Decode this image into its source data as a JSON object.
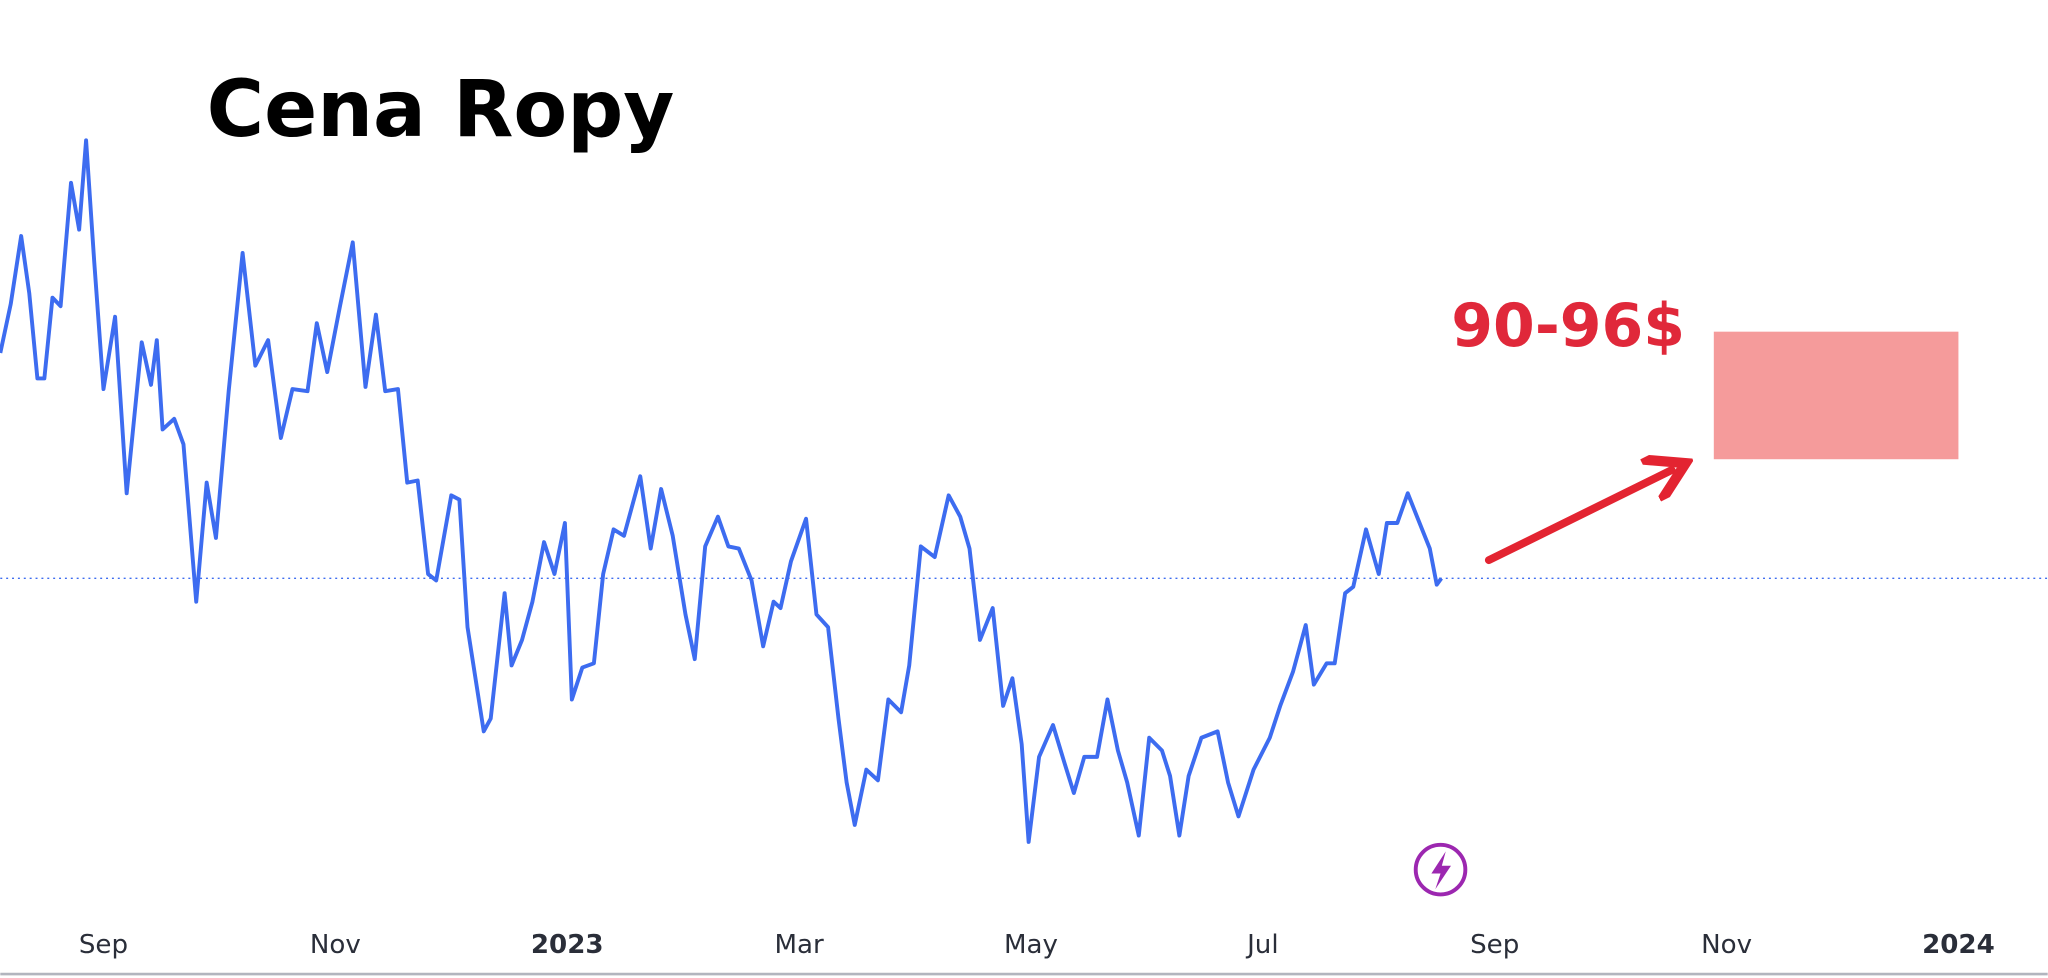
{
  "chart_data": {
    "type": "line",
    "title": "Cena Ropy",
    "x": [
      -0.89,
      -0.8,
      -0.71,
      -0.64,
      -0.57,
      -0.51,
      -0.44,
      -0.37,
      -0.28,
      -0.21,
      -0.15,
      -0.08,
      0.0,
      0.1,
      0.2,
      0.33,
      0.41,
      0.46,
      0.51,
      0.61,
      0.69,
      0.8,
      0.89,
      0.97,
      1.08,
      1.2,
      1.31,
      1.42,
      1.53,
      1.63,
      1.76,
      1.84,
      1.93,
      2.04,
      2.15,
      2.26,
      2.35,
      2.43,
      2.54,
      2.62,
      2.71,
      2.8,
      2.87,
      3.0,
      3.07,
      3.14,
      3.28,
      3.34,
      3.46,
      3.52,
      3.61,
      3.7,
      3.8,
      3.89,
      3.98,
      4.04,
      4.13,
      4.23,
      4.31,
      4.4,
      4.49,
      4.63,
      4.72,
      4.81,
      4.91,
      5.02,
      5.1,
      5.19,
      5.3,
      5.39,
      5.48,
      5.59,
      5.69,
      5.78,
      5.84,
      5.93,
      6.06,
      6.15,
      6.25,
      6.34,
      6.41,
      6.48,
      6.58,
      6.68,
      6.77,
      6.88,
      6.95,
      7.05,
      7.17,
      7.29,
      7.39,
      7.47,
      7.56,
      7.67,
      7.76,
      7.84,
      7.92,
      7.98,
      8.07,
      8.19,
      8.29,
      8.37,
      8.46,
      8.57,
      8.66,
      8.75,
      8.83,
      8.93,
      9.02,
      9.13,
      9.2,
      9.28,
      9.36,
      9.47,
      9.61,
      9.7,
      9.79,
      9.92,
      10.06,
      10.15,
      10.26,
      10.37,
      10.44,
      10.55,
      10.62,
      10.71,
      10.78,
      10.89,
      11.0,
      11.07,
      11.16,
      11.25,
      11.33,
      11.44,
      11.5,
      11.54
    ],
    "series": [
      {
        "color": "#3d6cf0",
        "values": [
          95.0,
          97.3,
          100.5,
          97.8,
          93.8,
          93.8,
          97.6,
          97.2,
          103.0,
          100.8,
          105.0,
          99.3,
          93.3,
          96.7,
          88.4,
          95.5,
          93.5,
          95.6,
          91.4,
          91.9,
          90.7,
          83.3,
          88.9,
          86.3,
          93.2,
          99.7,
          94.4,
          95.6,
          91.0,
          93.3,
          93.2,
          96.4,
          94.1,
          97.2,
          100.2,
          93.4,
          96.8,
          93.2,
          93.3,
          88.9,
          89.0,
          84.6,
          84.3,
          88.3,
          88.1,
          82.1,
          77.2,
          77.8,
          83.7,
          80.3,
          81.5,
          83.3,
          86.1,
          84.6,
          87.0,
          78.7,
          80.2,
          80.4,
          84.6,
          86.7,
          86.4,
          89.2,
          85.8,
          88.6,
          86.4,
          82.7,
          80.6,
          85.9,
          87.3,
          85.9,
          85.8,
          84.3,
          81.2,
          83.3,
          83.0,
          85.2,
          87.2,
          82.7,
          82.1,
          77.8,
          74.8,
          72.8,
          75.4,
          74.9,
          78.7,
          78.1,
          80.3,
          85.9,
          85.4,
          88.3,
          87.3,
          85.8,
          81.5,
          83.0,
          78.4,
          79.7,
          76.6,
          72.0,
          76.0,
          77.5,
          75.7,
          74.3,
          76.0,
          76.0,
          78.7,
          76.3,
          74.8,
          72.3,
          76.9,
          76.3,
          75.1,
          72.3,
          75.1,
          76.9,
          77.2,
          74.8,
          73.2,
          75.4,
          76.9,
          78.4,
          80.0,
          82.2,
          79.4,
          80.4,
          80.4,
          83.7,
          84.0,
          86.7,
          84.6,
          87.0,
          87.0,
          88.4,
          87.3,
          85.8,
          84.1,
          84.4
        ]
      }
    ],
    "xlim": [
      -0.89,
      16.77
    ],
    "xticks": [
      {
        "value": 0,
        "label": "Sep"
      },
      {
        "value": 2,
        "label": "Nov"
      },
      {
        "value": 4,
        "label": "2023"
      },
      {
        "value": 6,
        "label": "Mar"
      },
      {
        "value": 8,
        "label": "May"
      },
      {
        "value": 10,
        "label": "Jul"
      },
      {
        "value": 12,
        "label": "Sep"
      },
      {
        "value": 14,
        "label": "Nov"
      },
      {
        "value": 16,
        "label": "2024"
      }
    ],
    "ylim": [
      65.6,
      111.6
    ],
    "grid": true,
    "target_zone": {
      "label": "90-96$",
      "low": 90,
      "high": 96,
      "x_start": 13.89,
      "x_end": 16.0,
      "color": "#f59b9b"
    }
  }
}
